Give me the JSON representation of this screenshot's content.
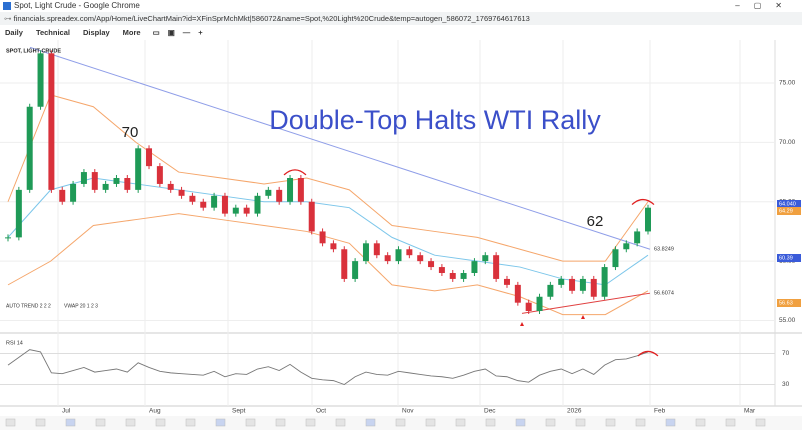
{
  "window": {
    "title": "Spot, Light Crude - Google Chrome",
    "url": "financials.spreadex.com/App/Home/LiveChartMain?id=XFinSprMchMkt|586072&name=Spot,%20Light%20Crude&temp=autogen_586072_1769764617613"
  },
  "toolbar": [
    "Daily",
    "Technical",
    "Display",
    "More"
  ],
  "chart_data": {
    "type": "candlestick",
    "title": "SPOT, LIGHT CRUDE",
    "annotations": [
      "Double-Top Halts WTI Rally",
      "70",
      "62"
    ],
    "closes": [
      62,
      66,
      73,
      77.5,
      66,
      65,
      66.5,
      67.5,
      66,
      66.5,
      67,
      66,
      69.5,
      68,
      66.5,
      66,
      65.5,
      65,
      64.5,
      65.5,
      64,
      64.5,
      64,
      65.5,
      66,
      65,
      67,
      65,
      62.5,
      61.5,
      61,
      58.5,
      60,
      61.5,
      60.5,
      60,
      61,
      60.5,
      60,
      59.5,
      59,
      58.5,
      59,
      60,
      60.5,
      58.5,
      58,
      56.5,
      55.8,
      57,
      58,
      58.5,
      57.5,
      58.5,
      57,
      59.5,
      61,
      61.5,
      62.5,
      64.5
    ],
    "up_color": "#1f9a57",
    "down_color": "#d9313b",
    "overlays": [
      {
        "name": "middle",
        "color": "#7cc6ea",
        "values": [
          62,
          66,
          67,
          66.5,
          66,
          65.5,
          65,
          65,
          64.5,
          62,
          60.5,
          60,
          59.5,
          58.5,
          58,
          60.5
        ]
      },
      {
        "name": "upper",
        "color": "#f5a66b",
        "values": [
          65,
          74,
          73,
          70,
          67.5,
          67,
          66.5,
          67,
          66,
          63,
          62.5,
          62,
          61,
          60,
          60,
          65
        ]
      },
      {
        "name": "lower",
        "color": "#f5a66b",
        "values": [
          58,
          60,
          63,
          63.5,
          64,
          63.5,
          63,
          62.5,
          61.5,
          58,
          57.5,
          58,
          57,
          55.5,
          55.5,
          57.5
        ]
      }
    ],
    "trendlines": [
      {
        "label": "63.8249",
        "color": "#8f9ee8",
        "values": [
          78,
          61
        ]
      },
      {
        "label": "56.6074",
        "color": "#e04040",
        "values": [
          55.6,
          57.3
        ]
      }
    ],
    "ylim": [
      54.2,
      78.2
    ],
    "yticks": [
      {
        "value": 55,
        "label": "55.00"
      },
      {
        "value": 60,
        "label": "60.00"
      },
      {
        "value": 65,
        "label": "65.00"
      },
      {
        "value": 70,
        "label": "70.00"
      },
      {
        "value": 75,
        "label": "75.00"
      }
    ],
    "price_tags": [
      {
        "label": "64.040",
        "color": "#3a5bd9"
      },
      {
        "label": "64.29",
        "color": "#f0a040"
      },
      {
        "label": "60.39",
        "color": "#3a5bd9"
      },
      {
        "label": "56.63",
        "color": "#f0a040"
      }
    ],
    "indicators": [
      "AUTO TREND 2 2 2",
      "VWAP 20 1 2 3"
    ],
    "rsi": {
      "title": "RSI 14",
      "ylim": [
        10,
        90
      ],
      "yticks": [
        70,
        30
      ],
      "values": [
        55,
        65,
        75,
        72,
        45,
        44,
        48,
        52,
        46,
        48,
        50,
        46,
        58,
        52,
        47,
        45,
        44,
        43,
        42,
        47,
        40,
        44,
        43,
        50,
        53,
        48,
        56,
        46,
        38,
        36,
        35,
        30,
        40,
        46,
        43,
        42,
        47,
        45,
        43,
        41,
        40,
        38,
        42,
        47,
        50,
        41,
        40,
        35,
        33,
        42,
        47,
        50,
        44,
        50,
        43,
        55,
        62,
        63,
        67,
        72
      ]
    },
    "months": [
      "Jul",
      "Aug",
      "Sept",
      "Oct",
      "Nov",
      "Dec",
      "2026",
      "Feb",
      "Mar"
    ]
  }
}
